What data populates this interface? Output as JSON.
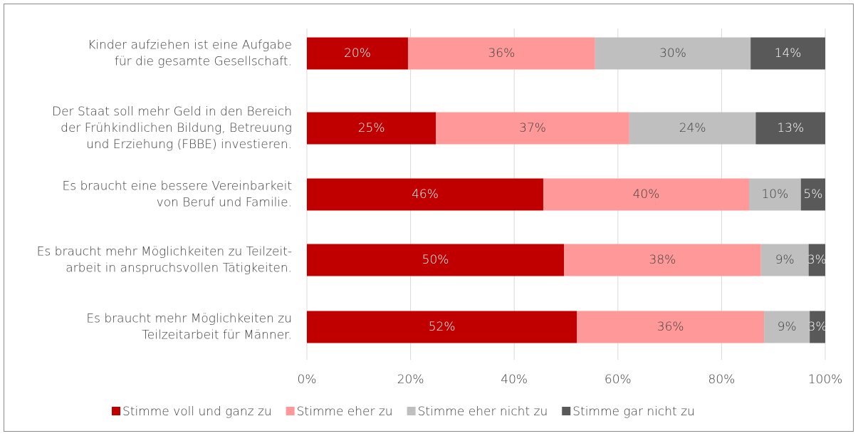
{
  "chart_data": {
    "type": "stacked_barh",
    "categories": [
      [
        "Kinder aufziehen ist eine Aufgabe",
        "für die gesamte Gesellschaft."
      ],
      [
        "Der Staat soll mehr Geld in den Bereich",
        "der Frühkindlichen Bildung, Betreuung",
        "und Erziehung (FBBE) investieren."
      ],
      [
        "Es braucht eine bessere Vereinbarkeit",
        "von Beruf und Familie."
      ],
      [
        "Es braucht mehr Möglichkeiten zu Teilzeit-",
        "arbeit in anspruchsvollen Tätigkeiten."
      ],
      [
        "Es braucht mehr Möglichkeiten zu",
        "Teilzeitarbeit für Männer."
      ]
    ],
    "series": [
      {
        "name": "Stimme voll und ganz zu",
        "color": "#c00000",
        "label_color": "#ffffff",
        "values": [
          19.5,
          24.9,
          45.6,
          49.6,
          52.1
        ],
        "value_labels": [
          "20%",
          "25%",
          "46%",
          "50%",
          "52%"
        ]
      },
      {
        "name": "Stimme eher zu",
        "color": "#ff9999",
        "label_color": "#404040",
        "values": [
          36.1,
          37.3,
          39.7,
          38.0,
          36.1
        ],
        "value_labels": [
          "36%",
          "37%",
          "40%",
          "38%",
          "36%"
        ]
      },
      {
        "name": "Stimme eher nicht zu",
        "color": "#bfbfbf",
        "label_color": "#404040",
        "values": [
          30.0,
          24.4,
          10.0,
          9.2,
          8.8
        ],
        "value_labels": [
          "30%",
          "24%",
          "10%",
          "9%",
          "9%"
        ]
      },
      {
        "name": "Stimme gar nicht zu",
        "color": "#595959",
        "label_color": "#ffffff",
        "values": [
          14.4,
          13.4,
          4.7,
          3.2,
          3.0
        ],
        "value_labels": [
          "14%",
          "13%",
          "5%",
          "3%",
          "3%"
        ]
      }
    ],
    "xlim": [
      0,
      100
    ],
    "xticks": [
      {
        "value": 0,
        "label": "0%"
      },
      {
        "value": 20,
        "label": "20%"
      },
      {
        "value": 40,
        "label": "40%"
      },
      {
        "value": 60,
        "label": "60%"
      },
      {
        "value": 80,
        "label": "80%"
      },
      {
        "value": 100,
        "label": "100%"
      }
    ],
    "grid": true,
    "legend": "bottom"
  }
}
